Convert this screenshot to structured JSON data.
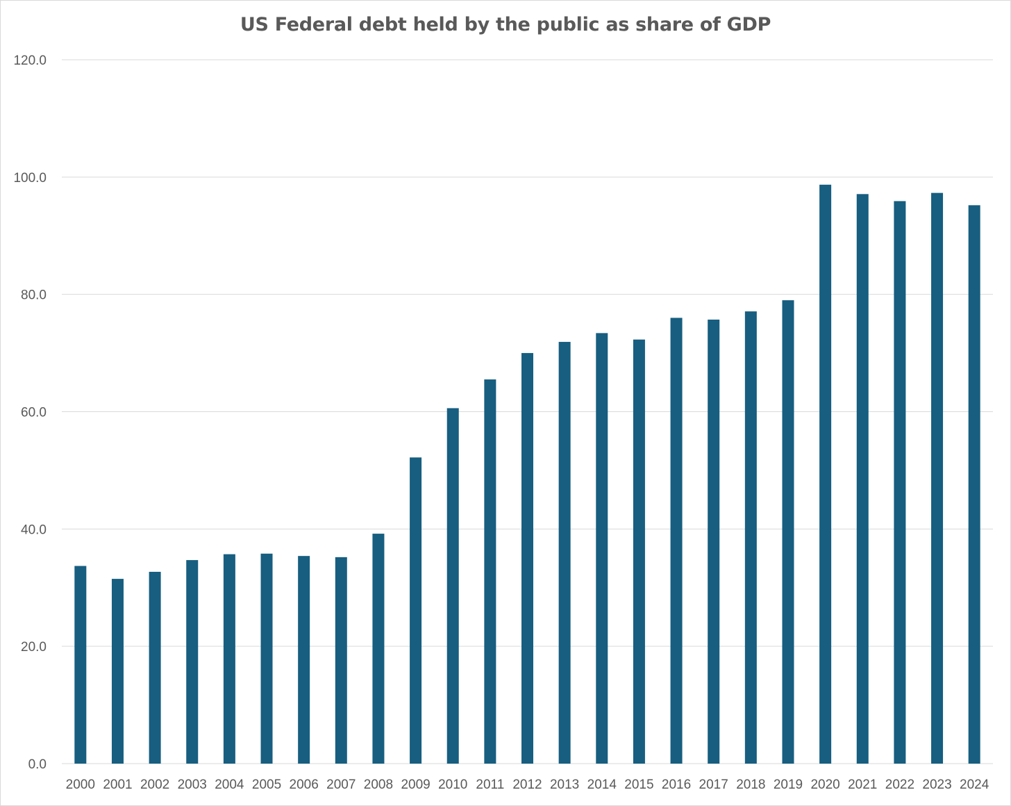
{
  "chart_data": {
    "type": "bar",
    "title": "US Federal debt held by the public as share of GDP",
    "xlabel": "",
    "ylabel": "",
    "categories": [
      "2000",
      "2001",
      "2002",
      "2003",
      "2004",
      "2005",
      "2006",
      "2007",
      "2008",
      "2009",
      "2010",
      "2011",
      "2012",
      "2013",
      "2014",
      "2015",
      "2016",
      "2017",
      "2018",
      "2019",
      "2020",
      "2021",
      "2022",
      "2023",
      "2024"
    ],
    "values": [
      33.7,
      31.5,
      32.7,
      34.7,
      35.7,
      35.8,
      35.4,
      35.2,
      39.2,
      52.2,
      60.6,
      65.5,
      70.0,
      71.9,
      73.4,
      72.3,
      76.0,
      75.7,
      77.1,
      79.0,
      98.7,
      97.1,
      95.9,
      97.3,
      95.2
    ],
    "ylim": [
      0,
      120
    ],
    "yticks": [
      "0.0",
      "20.0",
      "40.0",
      "60.0",
      "80.0",
      "100.0",
      "120.0"
    ],
    "grid": true,
    "legend": "none",
    "bar_color": "#175e80",
    "grid_color": "#d9d9d9"
  }
}
